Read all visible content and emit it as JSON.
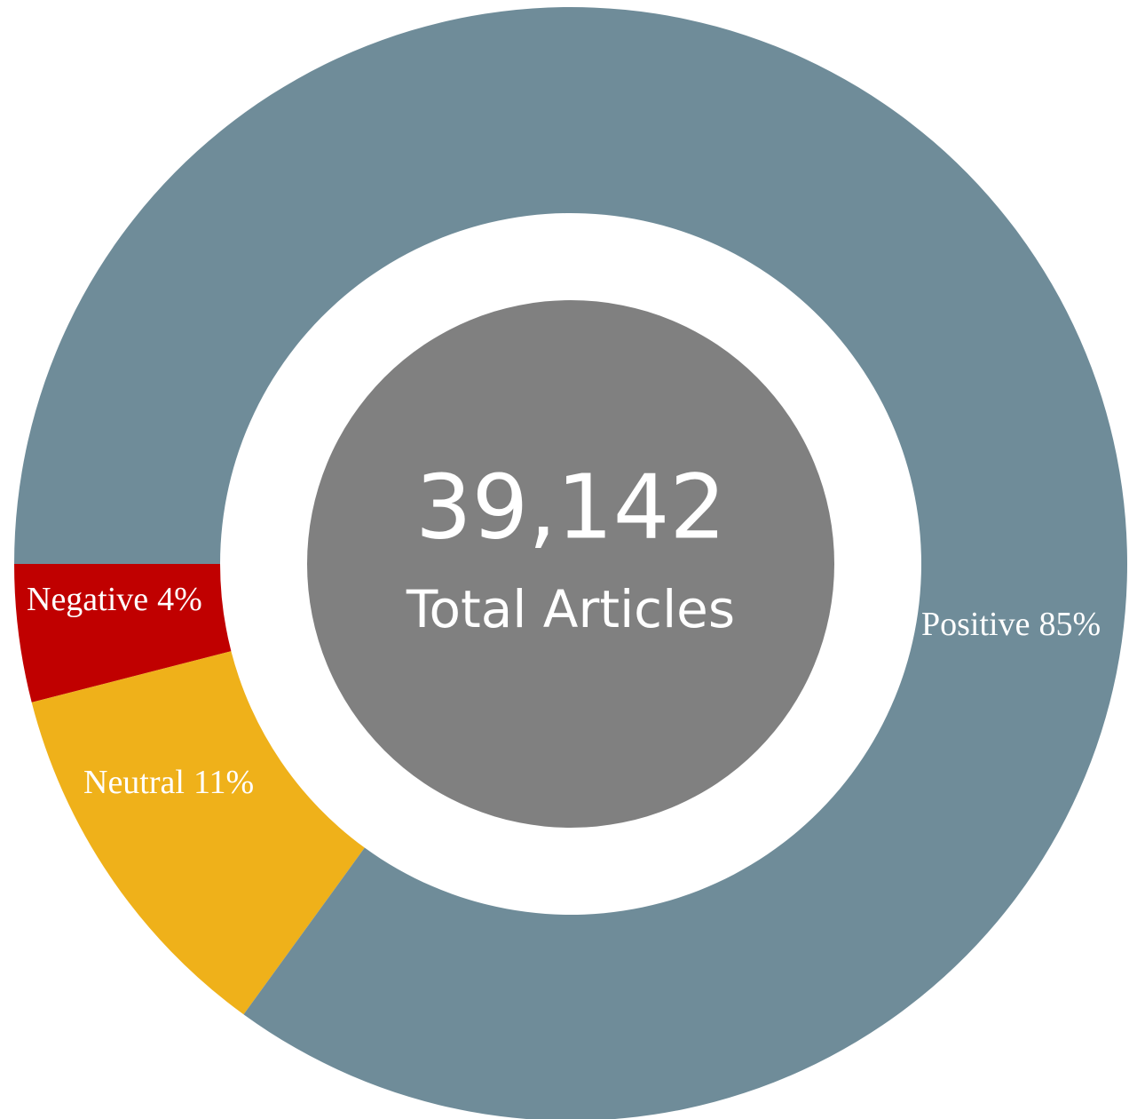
{
  "chart_data": {
    "type": "donut",
    "categories": [
      "Negative",
      "Neutral",
      "Positive"
    ],
    "values": [
      4,
      11,
      85
    ],
    "value_labels": [
      "4%",
      "11%",
      "85%"
    ],
    "colors": [
      "#c00000",
      "#efb11a",
      "#6f8c99"
    ],
    "center_text": "39,142",
    "center_caption": "Total Articles"
  }
}
